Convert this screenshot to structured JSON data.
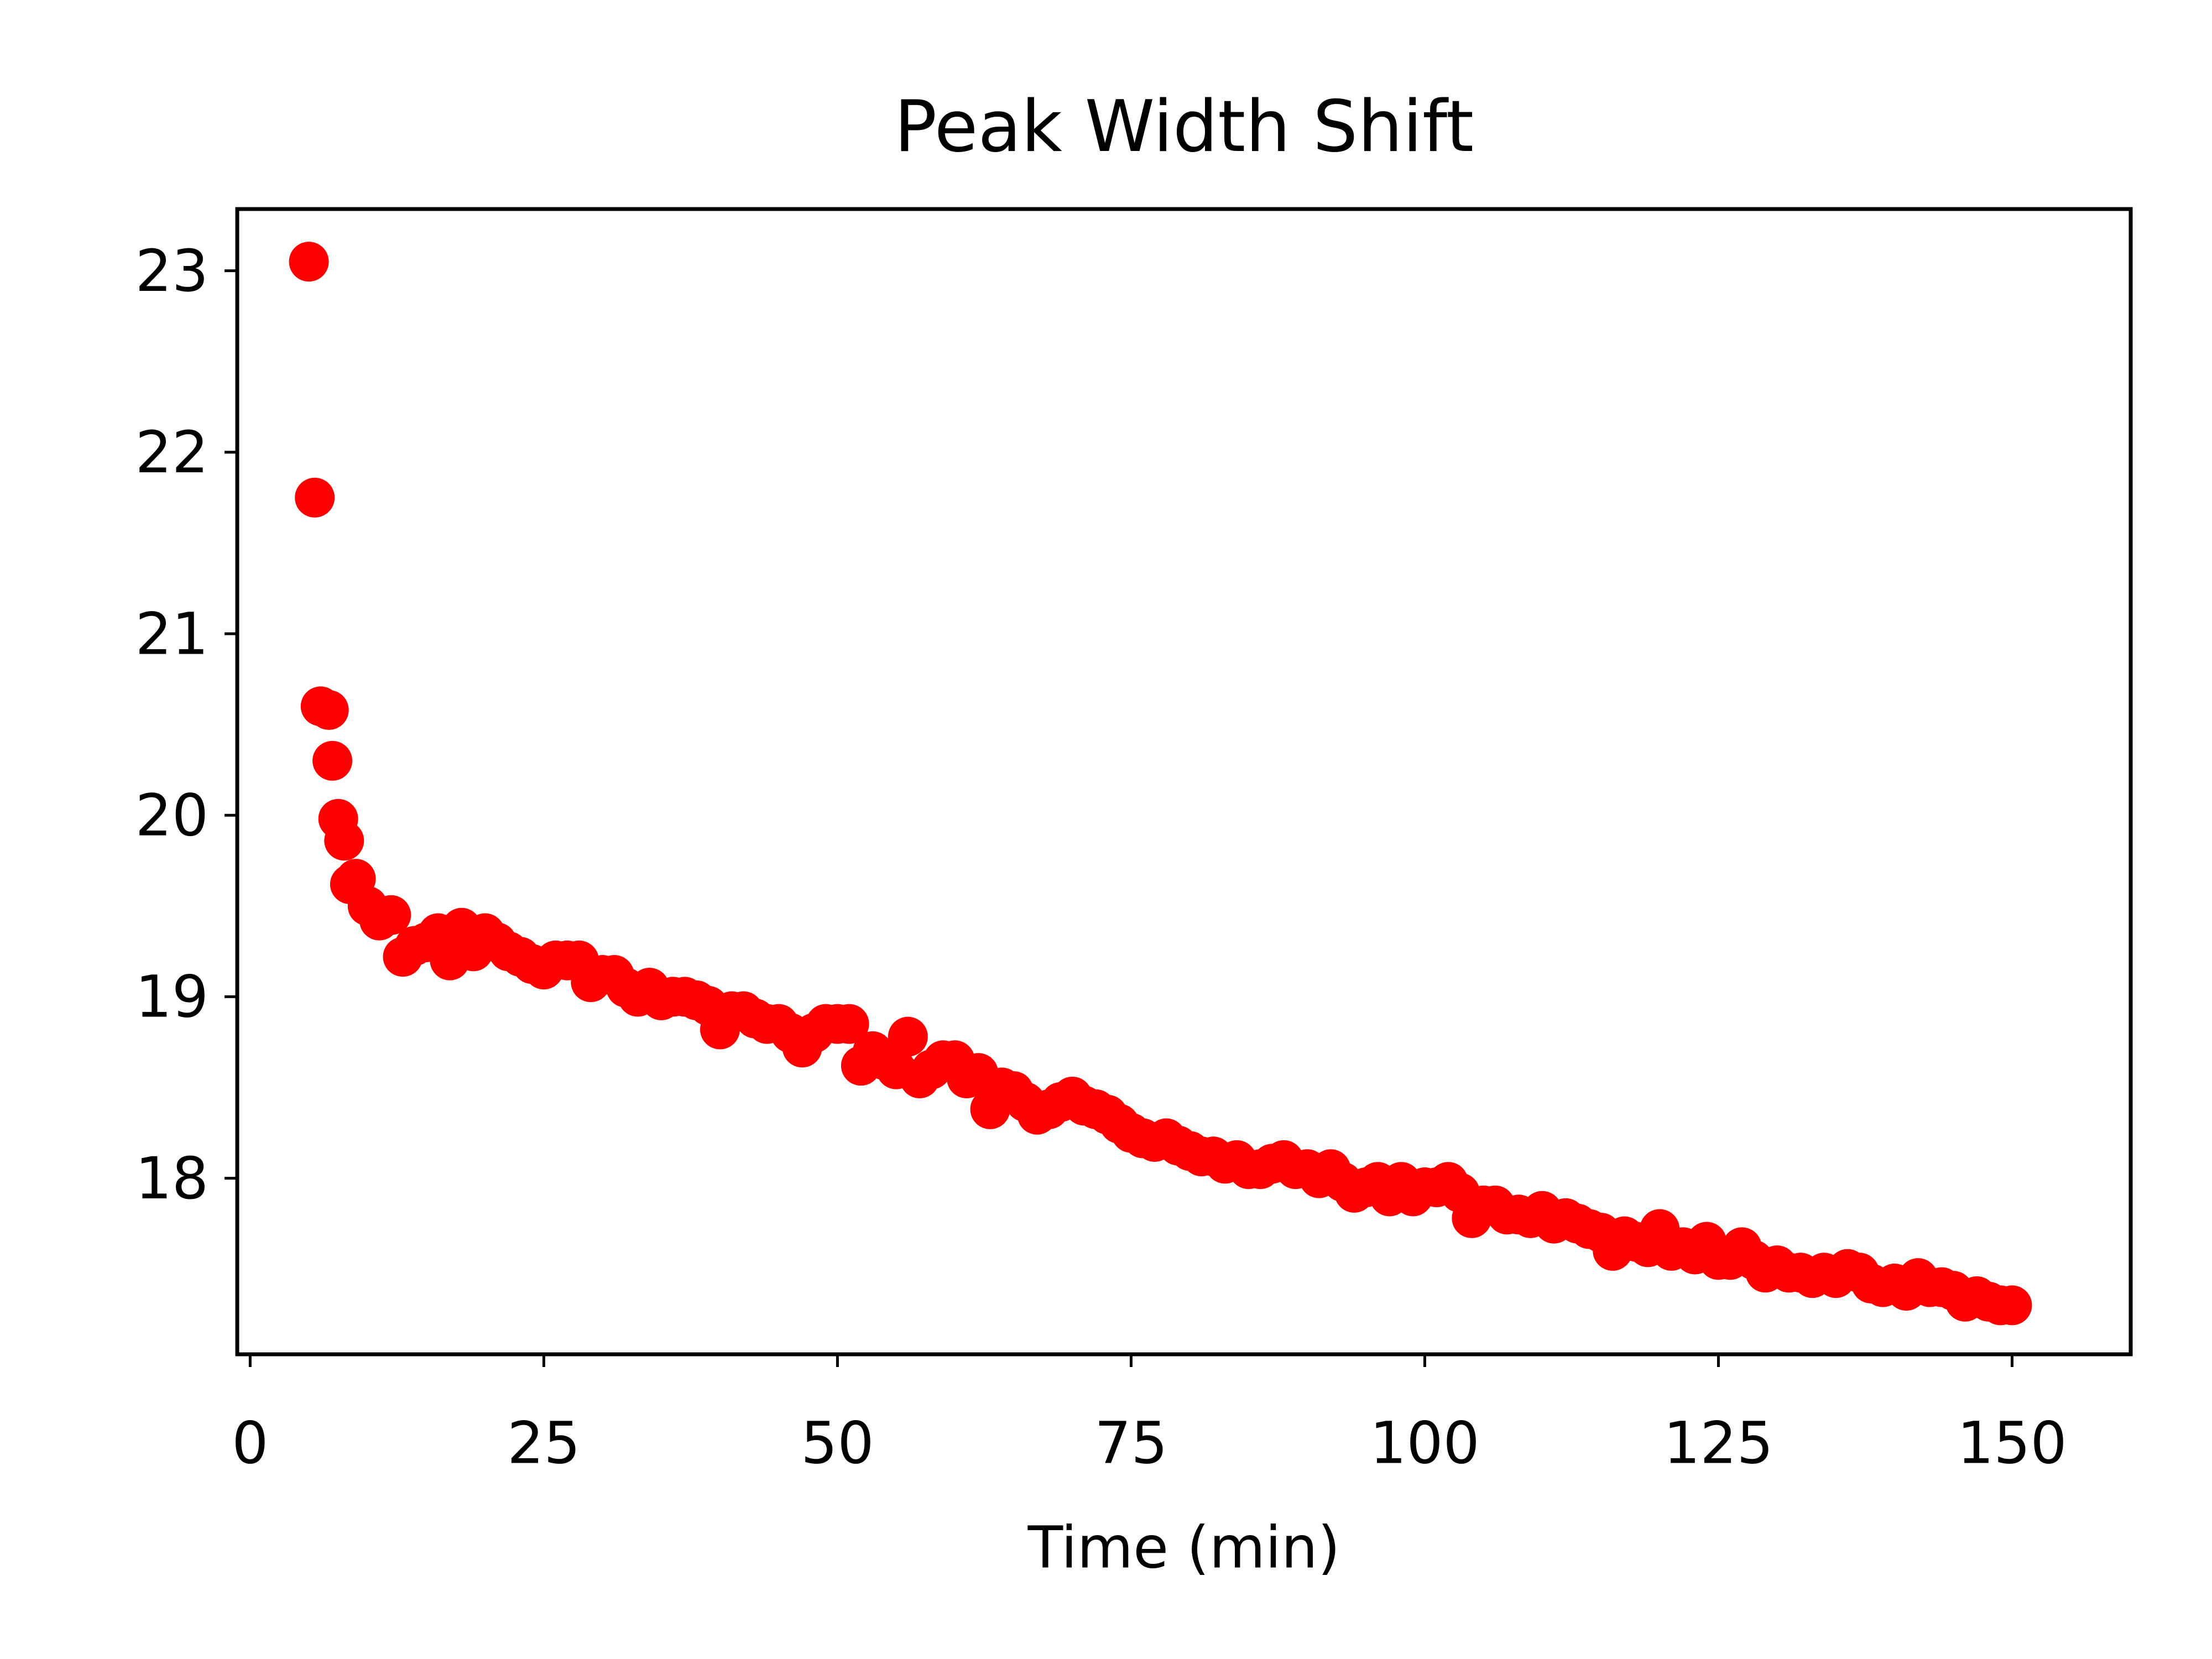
{
  "chart_data": {
    "type": "scatter",
    "title": "Peak Width Shift",
    "x_label": "Time (min)",
    "x": [
      5,
      5.5,
      6,
      6.7,
      7,
      7.5,
      8,
      8.5,
      9,
      10,
      11,
      12,
      13,
      14,
      15,
      16,
      17,
      18,
      19,
      20,
      21,
      22,
      23,
      24,
      25,
      26,
      27,
      28,
      29,
      30,
      31,
      32,
      33,
      34,
      35,
      36,
      37,
      38,
      39,
      40,
      41,
      42,
      43,
      44,
      45,
      46,
      47,
      48,
      49,
      50,
      51,
      52,
      53,
      54,
      55,
      56,
      57,
      58,
      59,
      60,
      61,
      62,
      63,
      64,
      65,
      66,
      67,
      68,
      69,
      70,
      71,
      72,
      73,
      74,
      75,
      76,
      77,
      78,
      79,
      80,
      81,
      82,
      83,
      84,
      85,
      86,
      87,
      88,
      89,
      90,
      91,
      92,
      93,
      94,
      95,
      96,
      97,
      98,
      99,
      100,
      101,
      102,
      103,
      104,
      105,
      106,
      107,
      108,
      109,
      110,
      111,
      112,
      113,
      114,
      115,
      116,
      117,
      118,
      119,
      120,
      121,
      122,
      123,
      124,
      125,
      126,
      127,
      128,
      129,
      130,
      131,
      132,
      133,
      134,
      135,
      136,
      137,
      138,
      139,
      140,
      141,
      142,
      143,
      144,
      145,
      146,
      147,
      148,
      149,
      150
    ],
    "series": [
      {
        "color": "#ff0000",
        "values": [
          23.05,
          21.75,
          20.6,
          20.58,
          20.3,
          19.98,
          19.86,
          19.62,
          19.65,
          19.5,
          19.42,
          19.45,
          19.22,
          19.28,
          19.3,
          19.35,
          19.2,
          19.38,
          19.25,
          19.35,
          19.3,
          19.25,
          19.22,
          19.18,
          19.15,
          19.2,
          19.2,
          19.2,
          19.08,
          19.12,
          19.12,
          19.05,
          19.0,
          19.05,
          18.98,
          19.0,
          19.0,
          18.98,
          18.95,
          18.82,
          18.92,
          18.92,
          18.88,
          18.85,
          18.85,
          18.8,
          18.72,
          18.8,
          18.85,
          18.85,
          18.85,
          18.62,
          18.7,
          18.65,
          18.6,
          18.78,
          18.55,
          18.6,
          18.65,
          18.65,
          18.55,
          18.58,
          18.38,
          18.5,
          18.48,
          18.42,
          18.35,
          18.38,
          18.42,
          18.45,
          18.4,
          18.38,
          18.35,
          18.3,
          18.25,
          18.22,
          18.2,
          18.22,
          18.18,
          18.15,
          18.12,
          18.12,
          18.08,
          18.1,
          18.05,
          18.05,
          18.08,
          18.1,
          18.05,
          18.05,
          18.0,
          18.05,
          17.98,
          17.92,
          17.95,
          17.98,
          17.9,
          17.98,
          17.9,
          17.95,
          17.95,
          17.98,
          17.92,
          17.78,
          17.85,
          17.85,
          17.8,
          17.8,
          17.78,
          17.82,
          17.75,
          17.78,
          17.75,
          17.72,
          17.7,
          17.6,
          17.68,
          17.65,
          17.62,
          17.72,
          17.6,
          17.62,
          17.58,
          17.65,
          17.55,
          17.55,
          17.62,
          17.55,
          17.48,
          17.52,
          17.48,
          17.48,
          17.45,
          17.48,
          17.45,
          17.5,
          17.48,
          17.42,
          17.4,
          17.42,
          17.38,
          17.45,
          17.4,
          17.4,
          17.38,
          17.32,
          17.35,
          17.32,
          17.3,
          17.3
        ]
      }
    ],
    "xlim": [
      -1.1,
      160.1
    ],
    "xticks": [
      0,
      25,
      50,
      75,
      100,
      125,
      150
    ],
    "ylim": [
      17.03,
      23.34
    ],
    "yticks": [
      18,
      19,
      20,
      21,
      22,
      23
    ],
    "grid": false
  }
}
